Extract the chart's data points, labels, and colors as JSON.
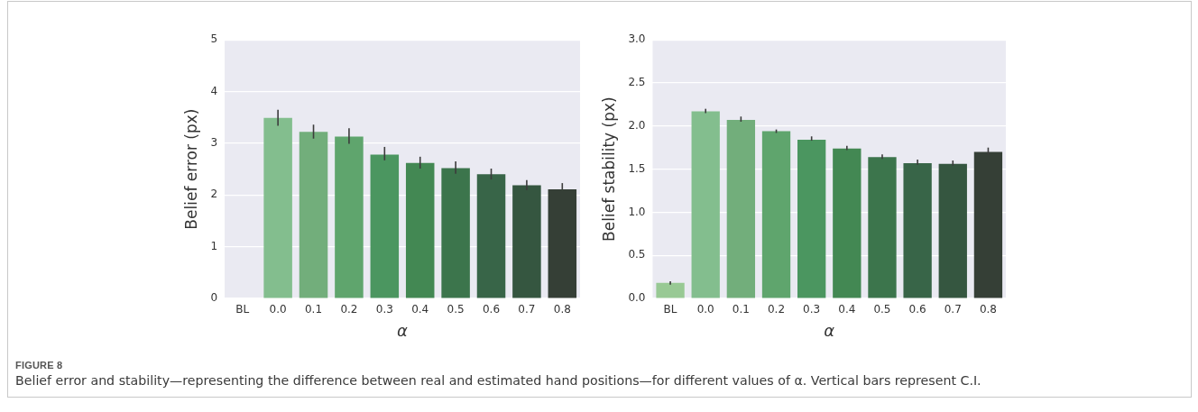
{
  "chart_data": [
    {
      "type": "bar",
      "categories": [
        "BL",
        "0.0",
        "0.1",
        "0.2",
        "0.3",
        "0.4",
        "0.5",
        "0.6",
        "0.7",
        "0.8"
      ],
      "values": [
        0,
        3.49,
        3.22,
        3.13,
        2.78,
        2.62,
        2.52,
        2.4,
        2.19,
        2.11
      ],
      "colors": [
        "#98c994",
        "#83be8e",
        "#72ae7b",
        "#5fa56d",
        "#4b9660",
        "#438853",
        "#3c754c",
        "#386548",
        "#355640",
        "#353f36"
      ],
      "errors": [
        null,
        [
          3.34,
          3.65
        ],
        [
          3.09,
          3.36
        ],
        [
          2.99,
          3.29
        ],
        [
          2.67,
          2.93
        ],
        [
          2.51,
          2.74
        ],
        [
          2.41,
          2.65
        ],
        [
          2.3,
          2.51
        ],
        [
          2.09,
          2.29
        ],
        [
          2.11,
          2.23
        ]
      ],
      "ylim": [
        0,
        5
      ],
      "yticks": [
        0,
        1,
        2,
        3,
        4,
        5
      ],
      "xlabel": "α",
      "ylabel": "Belief error (px)",
      "grid": "y",
      "annotations": [
        "FIGURE 8",
        "Belief error and stability—representing the difference between real and estimated hand positions—for different values of α. Vertical bars represent C.I."
      ]
    },
    {
      "type": "bar",
      "categories": [
        "BL",
        "0.0",
        "0.1",
        "0.2",
        "0.3",
        "0.4",
        "0.5",
        "0.6",
        "0.7",
        "0.8"
      ],
      "values": [
        0.18,
        2.17,
        2.07,
        1.94,
        1.84,
        1.74,
        1.64,
        1.57,
        1.56,
        1.7
      ],
      "colors": [
        "#98c994",
        "#83be8e",
        "#72ae7b",
        "#5fa56d",
        "#4b9660",
        "#438853",
        "#3c754c",
        "#386548",
        "#355640",
        "#353f36"
      ],
      "errors": [
        [
          0.16,
          0.2
        ],
        [
          2.15,
          2.2
        ],
        [
          2.05,
          2.11
        ],
        [
          1.92,
          1.96
        ],
        [
          1.83,
          1.88
        ],
        [
          1.72,
          1.77
        ],
        [
          1.62,
          1.67
        ],
        [
          1.55,
          1.61
        ],
        [
          1.54,
          1.6
        ],
        [
          1.67,
          1.75
        ]
      ],
      "ylim": [
        0,
        3
      ],
      "yticks": [
        {
          "value": 0,
          "label": "0.0"
        },
        {
          "value": 0.5,
          "label": "0.5"
        },
        {
          "value": 1,
          "label": "1.0"
        },
        {
          "value": 1.5,
          "label": "1.5"
        },
        {
          "value": 2,
          "label": "2.0"
        },
        {
          "value": 2.5,
          "label": "2.5"
        },
        {
          "value": 3,
          "label": "3.0"
        }
      ],
      "xlabel": "α",
      "ylabel": "Belief stability (px)",
      "grid": "y"
    }
  ]
}
